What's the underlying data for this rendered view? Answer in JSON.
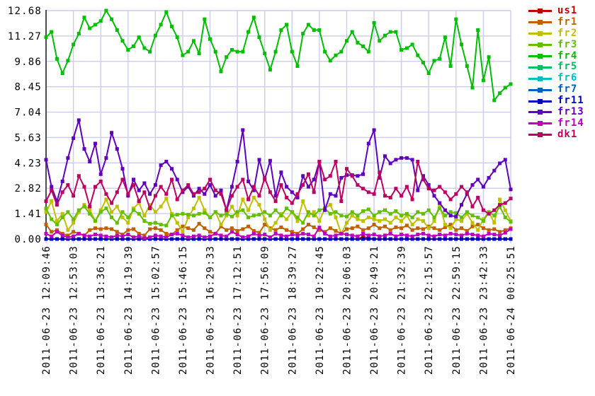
{
  "chart_data": {
    "type": "line",
    "title": "",
    "grid": true,
    "legend_position": "right-top",
    "colors": {
      "background": "#ffffff",
      "grid": "#ccccee",
      "axis": "#4d4d4d",
      "tick_text": "#000000"
    },
    "x_axis": {
      "label": "",
      "tick_labels": [
        "2011-06-23 12:09:46",
        "2011-06-23 12:53:03",
        "2011-06-23 13:36:21",
        "2011-06-23 14:19:39",
        "2011-06-23 15:02:57",
        "2011-06-23 15:46:15",
        "2011-06-23 16:29:33",
        "2011-06-23 17:12:51",
        "2011-06-23 17:56:09",
        "2011-06-23 18:39:27",
        "2011-06-23 19:22:45",
        "2011-06-23 20:06:03",
        "2011-06-23 20:49:21",
        "2011-06-23 21:32:39",
        "2011-06-23 22:15:57",
        "2011-06-23 22:59:15",
        "2011-06-23 23:42:33",
        "2011-06-24 00:25:51"
      ]
    },
    "y_axis": {
      "label": "",
      "min": 0,
      "max": 12.68,
      "tick_labels": [
        "0.00",
        "1.41",
        "2.82",
        "4.23",
        "5.63",
        "7.04",
        "8.45",
        "9.86",
        "11.27",
        "12.68"
      ]
    },
    "series": [
      {
        "name": "us1",
        "color": "#c00000",
        "values": [
          0,
          0,
          0,
          0,
          0,
          0,
          0,
          0,
          0,
          0,
          0,
          0,
          0,
          0,
          0,
          0,
          0,
          0,
          0,
          0,
          0,
          0,
          0,
          0,
          0,
          0,
          0,
          0,
          0,
          0,
          0,
          0,
          0,
          0,
          0,
          0,
          0,
          0,
          0,
          0,
          0,
          0,
          0,
          0,
          0,
          0,
          0,
          0,
          0,
          0,
          0,
          0,
          0,
          0,
          0,
          0,
          0,
          0,
          0.12,
          0.05,
          0,
          0,
          0,
          0,
          0,
          0,
          0,
          0,
          0,
          0,
          0,
          0,
          0,
          0,
          0,
          0,
          0,
          0,
          0,
          0,
          0,
          0,
          0,
          0,
          0,
          0
        ]
      },
      {
        "name": "fr1",
        "color": "#c06000",
        "values": [
          0.8,
          0.4,
          0.5,
          0.3,
          0.2,
          0.4,
          0.3,
          0.2,
          0.5,
          0.6,
          0.55,
          0.6,
          0.55,
          0.4,
          0.25,
          0.5,
          0.55,
          0.3,
          0.2,
          0.55,
          0.6,
          0.5,
          0.3,
          0.25,
          0.5,
          0.7,
          0.6,
          0.5,
          0.85,
          0.6,
          0.4,
          0.3,
          0.7,
          0.5,
          0.6,
          0.45,
          0.55,
          0.7,
          0.45,
          0.35,
          0.8,
          0.6,
          0.5,
          0.65,
          0.5,
          0.4,
          0.3,
          0.55,
          0.8,
          0.65,
          0.5,
          0.4,
          0.6,
          0.45,
          0.3,
          0.55,
          0.6,
          0.7,
          0.5,
          0.6,
          0.8,
          0.6,
          0.7,
          0.5,
          0.65,
          0.6,
          0.75,
          0.5,
          0.6,
          0.55,
          0.7,
          0.6,
          0.5,
          0.65,
          0.8,
          0.5,
          0.6,
          0.45,
          0.7,
          0.8,
          0.6,
          0.5,
          0.55,
          0.4,
          0.5,
          0.6
        ]
      },
      {
        "name": "fr2",
        "color": "#c0c000",
        "values": [
          1.5,
          2.1,
          1.0,
          1.4,
          0.5,
          0.9,
          1.5,
          1.9,
          1.6,
          1.0,
          1.6,
          2.2,
          1.5,
          1.8,
          1.2,
          0.9,
          1.7,
          2.0,
          1.3,
          1.9,
          1.5,
          1.8,
          2.25,
          1.4,
          0.9,
          0.4,
          1.2,
          1.7,
          2.3,
          1.6,
          1.2,
          1.5,
          0.8,
          1.3,
          1.8,
          1.3,
          2.2,
          1.6,
          2.3,
          1.9,
          1.1,
          0.5,
          0.9,
          1.4,
          1.1,
          1.5,
          1.0,
          2.1,
          1.3,
          1.5,
          1.0,
          1.7,
          1.9,
          1.2,
          0.3,
          0.9,
          1.3,
          1.1,
          1.0,
          1.2,
          1.1,
          1.0,
          1.1,
          0.9,
          1.2,
          1.0,
          1.3,
          0.8,
          1.1,
          1.0,
          0.6,
          1.0,
          1.9,
          0.8,
          0.6,
          1.1,
          1.0,
          1.4,
          0.9,
          0.5,
          1.1,
          1.5,
          0.9,
          2.2,
          1.6,
          1.0
        ]
      },
      {
        "name": "fr3",
        "color": "#60c000",
        "values": [
          1.7,
          1.1,
          0.8,
          1.2,
          1.5,
          1.1,
          1.6,
          1.8,
          1.4,
          1.0,
          1.5,
          1.7,
          1.2,
          0.9,
          1.5,
          1.2,
          1.6,
          1.4,
          1.0,
          0.85,
          0.9,
          0.8,
          0.75,
          1.3,
          1.35,
          1.4,
          1.35,
          1.3,
          1.4,
          1.45,
          1.2,
          1.5,
          1.3,
          1.4,
          1.25,
          1.5,
          1.6,
          1.2,
          1.3,
          1.35,
          1.5,
          1.3,
          1.6,
          1.3,
          1.7,
          1.5,
          1.2,
          0.9,
          1.5,
          1.3,
          1.6,
          1.7,
          1.4,
          1.5,
          1.3,
          1.25,
          1.5,
          1.3,
          1.55,
          1.65,
          1.3,
          1.5,
          1.6,
          1.4,
          1.55,
          1.3,
          1.4,
          1.2,
          1.5,
          1.4,
          1.6,
          1.2,
          1.7,
          1.3,
          1.5,
          1.45,
          1.2,
          1.5,
          1.3,
          1.2,
          1.0,
          1.5,
          1.3,
          1.8,
          1.2,
          0.95
        ]
      },
      {
        "name": "fr4",
        "color": "#00c000",
        "values": [
          11.2,
          11.5,
          10.0,
          9.2,
          9.9,
          10.8,
          11.4,
          12.3,
          11.7,
          11.9,
          12.1,
          12.68,
          12.2,
          11.6,
          11.0,
          10.5,
          10.7,
          11.2,
          10.6,
          10.4,
          11.3,
          11.9,
          12.6,
          11.8,
          11.2,
          10.2,
          10.4,
          11.0,
          10.3,
          12.2,
          11.1,
          10.4,
          9.3,
          10.1,
          10.5,
          10.4,
          10.4,
          11.5,
          12.3,
          11.2,
          10.3,
          9.4,
          10.4,
          11.6,
          11.9,
          10.4,
          9.6,
          11.4,
          11.9,
          11.6,
          11.6,
          10.4,
          9.9,
          10.2,
          10.4,
          11.0,
          11.5,
          10.9,
          10.7,
          10.4,
          12.0,
          11.0,
          11.3,
          11.5,
          11.5,
          10.5,
          10.6,
          10.8,
          10.2,
          9.8,
          9.2,
          9.9,
          10.0,
          11.2,
          9.6,
          12.2,
          10.8,
          9.6,
          8.4,
          11.6,
          8.8,
          10.1,
          7.7,
          8.1,
          8.4,
          8.6
        ]
      },
      {
        "name": "fr5",
        "color": "#00c060",
        "values": [
          0,
          0,
          0,
          0,
          0,
          0,
          0,
          0,
          0,
          0,
          0,
          0,
          0,
          0,
          0,
          0,
          0,
          0,
          0,
          0,
          0,
          0,
          0,
          0,
          0,
          0,
          0,
          0,
          0,
          0,
          0,
          0,
          0,
          0,
          0,
          0,
          0,
          0,
          0,
          0,
          0,
          0,
          0,
          0,
          0,
          0,
          0,
          0,
          0,
          0,
          0,
          0,
          0,
          0,
          0,
          0,
          0,
          0,
          0,
          0,
          0,
          0,
          0,
          0,
          0,
          0,
          0,
          0,
          0,
          0,
          0,
          0,
          0,
          0,
          0,
          0,
          0,
          0,
          0,
          0,
          0,
          0,
          0,
          0,
          0,
          0
        ]
      },
      {
        "name": "fr6",
        "color": "#00c0c0",
        "values": [
          0,
          0,
          0,
          0,
          0,
          0,
          0,
          0,
          0,
          0,
          0,
          0,
          0,
          0,
          0,
          0,
          0,
          0,
          0,
          0,
          0,
          0,
          0,
          0,
          0,
          0,
          0,
          0,
          0,
          0,
          0,
          0,
          0,
          0,
          0,
          0,
          0,
          0,
          0,
          0,
          0,
          0,
          0,
          0,
          0,
          0,
          0,
          0,
          0,
          0,
          0,
          0,
          0,
          0,
          0,
          0,
          0,
          0,
          0,
          0,
          0,
          0,
          0,
          0,
          0,
          0,
          0,
          0,
          0,
          0,
          0,
          0,
          0,
          0,
          0,
          0,
          0,
          0,
          0,
          0,
          0,
          0,
          0,
          0,
          0,
          0
        ]
      },
      {
        "name": "fr7",
        "color": "#0060c0",
        "values": [
          0,
          0,
          0,
          0,
          0,
          0,
          0,
          0,
          0,
          0,
          0,
          0,
          0,
          0,
          0,
          0,
          0,
          0,
          0,
          0,
          0,
          0,
          0,
          0,
          0,
          0,
          0,
          0,
          0,
          0,
          0,
          0,
          0,
          0,
          0,
          0,
          0,
          0,
          0,
          0,
          0,
          0,
          0,
          0,
          0,
          0,
          0,
          0,
          0,
          0,
          0,
          0,
          0,
          0,
          0,
          0,
          0,
          0,
          0,
          0,
          0,
          0,
          0,
          0,
          0,
          0,
          0,
          0,
          0,
          0,
          0,
          0,
          0,
          0,
          0,
          0,
          0,
          0,
          0,
          0,
          0,
          0,
          0,
          0,
          0,
          0
        ]
      },
      {
        "name": "fr11",
        "color": "#0000c0",
        "values": [
          0,
          0,
          0,
          0,
          0,
          0,
          0,
          0,
          0,
          0,
          0,
          0,
          0,
          0,
          0,
          0,
          0,
          0,
          0,
          0,
          0,
          0,
          0,
          0,
          0,
          0,
          0,
          0,
          0,
          0,
          0,
          0,
          0,
          0,
          0,
          0,
          0,
          0,
          0,
          0,
          0,
          0,
          0,
          0,
          0,
          0,
          0,
          0,
          0,
          0,
          0,
          0,
          0,
          0,
          0,
          0,
          0,
          0,
          0,
          0,
          0,
          0,
          0,
          0,
          0,
          0,
          0,
          0,
          0,
          0,
          0,
          0,
          0,
          0,
          0,
          0,
          0,
          0,
          0,
          0,
          0,
          0,
          0,
          0,
          0,
          0
        ]
      },
      {
        "name": "fr13",
        "color": "#6000c0",
        "values": [
          4.4,
          2.9,
          2.1,
          3.2,
          4.5,
          5.6,
          6.6,
          5.0,
          4.3,
          5.3,
          3.6,
          4.5,
          5.9,
          5.0,
          3.9,
          2.4,
          3.3,
          2.7,
          3.1,
          2.5,
          3.0,
          4.1,
          4.3,
          3.9,
          3.3,
          2.6,
          2.9,
          2.4,
          2.8,
          2.5,
          3.0,
          2.4,
          2.7,
          1.6,
          2.9,
          4.3,
          6.05,
          3.2,
          2.7,
          4.4,
          3.3,
          4.35,
          2.4,
          3.7,
          2.9,
          2.6,
          2.3,
          3.5,
          2.9,
          3.3,
          4.3,
          1.6,
          2.5,
          2.4,
          3.4,
          3.55,
          3.55,
          3.5,
          3.6,
          5.3,
          6.05,
          3.4,
          4.6,
          4.2,
          4.4,
          4.5,
          4.5,
          4.4,
          2.7,
          3.5,
          3.0,
          2.4,
          2.0,
          1.6,
          1.3,
          1.25,
          1.9,
          2.5,
          3.0,
          3.3,
          2.9,
          3.4,
          3.8,
          4.2,
          4.4,
          2.75
        ]
      },
      {
        "name": "fr14",
        "color": "#c000c0",
        "values": [
          0.3,
          0.15,
          0.4,
          0.2,
          0.1,
          0.15,
          0.3,
          0.2,
          0.15,
          0.25,
          0.2,
          0.15,
          0.1,
          0.2,
          0.15,
          0.25,
          0.1,
          0.15,
          0.05,
          0.1,
          0.2,
          0.15,
          0.1,
          0.25,
          0.3,
          0.2,
          0.1,
          0.15,
          0.2,
          0.1,
          0.15,
          0.3,
          0.2,
          0.15,
          0.4,
          0.25,
          0.1,
          0.15,
          0.3,
          0.2,
          0.25,
          0.1,
          0.3,
          0.2,
          0.15,
          0.25,
          0.2,
          0.3,
          0.25,
          0.15,
          0.64,
          0.3,
          0.15,
          0.2,
          0.3,
          0.25,
          0.2,
          0.15,
          0.3,
          0.2,
          0.25,
          0.15,
          0.2,
          0.3,
          0.15,
          0.25,
          0.2,
          0.15,
          0.25,
          0.3,
          0.2,
          0.15,
          0.25,
          0.2,
          0.3,
          0.25,
          0.2,
          0.3,
          0.25,
          0.2,
          0.15,
          0.3,
          0.25,
          0.2,
          0.35,
          0.55
        ]
      },
      {
        "name": "dk1",
        "color": "#c00060",
        "values": [
          2.1,
          2.7,
          1.9,
          2.6,
          3.0,
          2.4,
          3.5,
          2.9,
          1.8,
          2.9,
          3.2,
          2.5,
          2.0,
          2.6,
          3.3,
          2.5,
          3.0,
          2.1,
          2.6,
          1.7,
          2.4,
          2.9,
          2.5,
          3.3,
          2.2,
          2.7,
          3.0,
          2.5,
          2.6,
          2.8,
          3.3,
          2.7,
          2.5,
          1.6,
          2.4,
          2.9,
          3.3,
          2.2,
          2.9,
          2.4,
          3.4,
          2.6,
          2.1,
          3.0,
          2.3,
          2.0,
          2.5,
          3.0,
          3.6,
          2.6,
          4.3,
          3.3,
          3.5,
          4.3,
          2.1,
          3.9,
          3.5,
          3.0,
          2.8,
          2.6,
          2.5,
          3.7,
          2.4,
          2.3,
          2.8,
          2.4,
          2.9,
          2.2,
          4.3,
          3.3,
          2.8,
          2.7,
          2.9,
          2.6,
          2.2,
          2.5,
          2.9,
          2.6,
          1.8,
          2.3,
          1.6,
          1.4,
          1.6,
          1.9,
          2.0,
          2.25
        ]
      }
    ]
  }
}
